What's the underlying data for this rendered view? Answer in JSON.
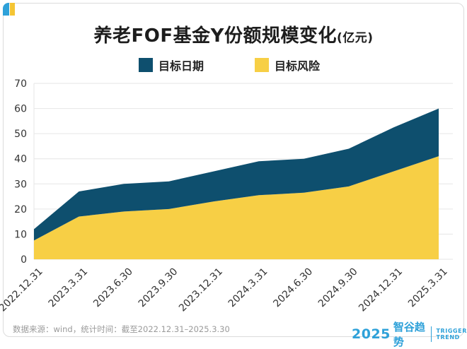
{
  "header": {
    "title": "养老FOF基金Y份额规模变化",
    "title_unit": "(亿元)"
  },
  "legend": [
    {
      "label": "目标日期",
      "color": "#0e4f6e"
    },
    {
      "label": "目标风险",
      "color": "#f7cf45"
    }
  ],
  "chart_data": {
    "type": "area",
    "stacked": true,
    "title": "养老FOF基金Y份额规模变化(亿元)",
    "categories": [
      "2022.12.31",
      "2023.3.31",
      "2023.6.30",
      "2023.9.30",
      "2023.12.31",
      "2024.3.31",
      "2024.6.30",
      "2024.9.30",
      "2024.12.31",
      "2025.3.31"
    ],
    "series": [
      {
        "name": "目标风险",
        "color": "#f7cf45",
        "values": [
          7.5,
          17,
          19,
          20,
          23,
          25.5,
          26.5,
          29,
          35,
          41
        ]
      },
      {
        "name": "目标日期",
        "color": "#0e4f6e",
        "values": [
          4.5,
          10,
          11,
          11,
          12,
          13.5,
          13.5,
          15,
          17.5,
          19
        ]
      }
    ],
    "ylim": [
      0,
      70
    ],
    "yticks": [
      0,
      10,
      20,
      30,
      40,
      50,
      60,
      70
    ],
    "grid": true,
    "legend_position": "top-center"
  },
  "footer": {
    "source": "数据来源：wind，统计时间：截至2022.12.31–2025.3.30",
    "brand_year": "2025",
    "brand_name": "智谷趋势",
    "brand_en_1": "TRIGGER",
    "brand_en_2": "TREND"
  }
}
